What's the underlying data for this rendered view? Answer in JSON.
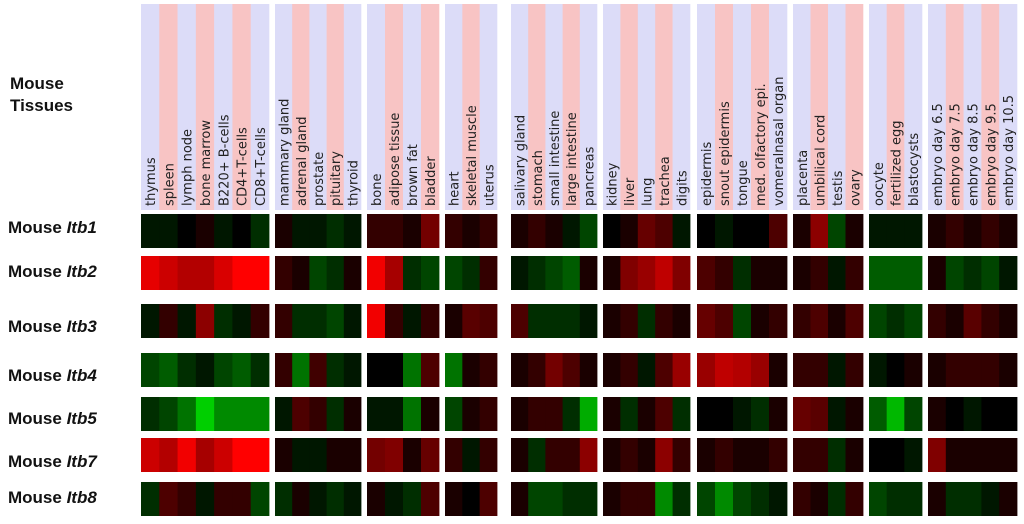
{
  "chart_data": {
    "type": "heatmap",
    "corner_label": [
      "Mouse",
      "Tissues"
    ],
    "row_prefix": "Mouse",
    "rows": [
      "Itb1",
      "Itb2",
      "Itb3",
      "Itb4",
      "Itb5",
      "Itb7",
      "Itb8"
    ],
    "colors": {
      "strong_red": "#ff0000",
      "strong_green": "#00e000",
      "zero": "#000000",
      "header_blue": "#dcdcf8",
      "header_pink": "#f8c4c4"
    },
    "groups": [
      {
        "tissues": [
          "thymus",
          "spleen",
          "lymph node",
          "bone marrow",
          "B220+ B-cells",
          "CD4+T-cells",
          "CD8+T-cells"
        ],
        "values": [
          [
            -0.1,
            -0.1,
            0,
            0.1,
            -0.1,
            0,
            -0.2
          ],
          [
            0.9,
            0.8,
            0.7,
            0.7,
            0.85,
            1,
            1
          ],
          [
            -0.1,
            0.2,
            -0.1,
            0.55,
            -0.2,
            -0.1,
            0.2
          ],
          [
            -0.3,
            -0.4,
            -0.2,
            -0.1,
            -0.3,
            -0.4,
            -0.2
          ],
          [
            -0.2,
            -0.3,
            -0.5,
            -0.9,
            -0.6,
            -0.6,
            -0.6
          ],
          [
            0.8,
            0.7,
            0.95,
            0.65,
            0.8,
            1,
            1
          ],
          [
            -0.2,
            0.3,
            0.2,
            -0.1,
            0.2,
            0.2,
            -0.3
          ]
        ]
      },
      {
        "tissues": [
          "mammary gland",
          "adrenal gland",
          "prostate",
          "pituitary",
          "thyroid"
        ],
        "values": [
          [
            0.1,
            -0.1,
            -0.1,
            -0.2,
            -0.1
          ],
          [
            0.2,
            0.1,
            -0.3,
            -0.2,
            0.1
          ],
          [
            0.2,
            -0.2,
            -0.2,
            -0.3,
            -0.1
          ],
          [
            0.2,
            -0.5,
            0.25,
            -0.2,
            -0.1
          ],
          [
            -0.1,
            0.3,
            0.2,
            -0.2,
            0.1
          ],
          [
            0.1,
            -0.1,
            -0.1,
            0.1,
            0.1
          ],
          [
            -0.2,
            0.1,
            -0.1,
            -0.2,
            -0.1
          ]
        ]
      },
      {
        "tissues": [
          "bone",
          "adipose tissue",
          "brown fat",
          "bladder"
        ],
        "values": [
          [
            0.2,
            0.2,
            0.1,
            0.45
          ],
          [
            0.95,
            0.65,
            -0.2,
            -0.3
          ],
          [
            0.95,
            0.2,
            -0.1,
            0.2
          ],
          [
            0,
            0,
            -0.5,
            0.3
          ],
          [
            -0.1,
            -0.1,
            -0.5,
            0.1
          ],
          [
            0.45,
            0.5,
            0.1,
            0.4
          ],
          [
            0.1,
            -0.1,
            -0.2,
            0.3
          ]
        ]
      },
      {
        "tissues": [
          "heart",
          "skeletal muscle",
          "uterus"
        ],
        "values": [
          [
            0.2,
            0.1,
            0.2
          ],
          [
            -0.3,
            -0.2,
            0.2
          ],
          [
            0.1,
            0.35,
            0.3
          ],
          [
            -0.5,
            0.1,
            0.2
          ],
          [
            -0.3,
            0.1,
            0.2
          ],
          [
            0.2,
            -0.1,
            0.2
          ],
          [
            0.1,
            0,
            0.3
          ]
        ]
      },
      {
        "tissues": [
          "salivary gland",
          "stomach",
          "small intestine",
          "large intestine",
          "pancreas"
        ],
        "values": [
          [
            0.1,
            0.2,
            0.1,
            -0.1,
            -0.3
          ],
          [
            -0.1,
            -0.2,
            -0.3,
            -0.4,
            0.1
          ],
          [
            0.3,
            -0.2,
            -0.2,
            -0.2,
            -0.1
          ],
          [
            0.1,
            0.2,
            0.45,
            0.3,
            0.1
          ],
          [
            0.1,
            0.2,
            0.2,
            -0.2,
            -0.75
          ],
          [
            0.1,
            -0.2,
            0.2,
            0.2,
            0.55
          ],
          [
            0.1,
            -0.3,
            -0.3,
            -0.2,
            -0.2
          ]
        ]
      },
      {
        "tissues": [
          "kidney",
          "liver",
          "lung",
          "trachea",
          "digits"
        ],
        "values": [
          [
            0,
            0.1,
            0.4,
            0.3,
            -0.1
          ],
          [
            0.1,
            0.5,
            0.6,
            0.75,
            0.5
          ],
          [
            0.1,
            0.2,
            -0.2,
            0.2,
            0.1
          ],
          [
            0.1,
            0.2,
            -0.1,
            0.3,
            0.6
          ],
          [
            0.1,
            -0.2,
            0.1,
            0.3,
            -0.2
          ],
          [
            0.1,
            0.2,
            0.1,
            0.55,
            0.2
          ],
          [
            0.1,
            0.2,
            0.2,
            -0.6,
            -0.2
          ]
        ]
      },
      {
        "tissues": [
          "epidermis",
          "snout epidermis",
          "tongue",
          "med. olfactory epi.",
          "vomeralnasal organ"
        ],
        "values": [
          [
            0,
            -0.1,
            0,
            0,
            0.3
          ],
          [
            0.3,
            0.2,
            -0.2,
            0.1,
            0.1
          ],
          [
            0.4,
            0.3,
            -0.3,
            0.1,
            0.2
          ],
          [
            0.6,
            0.75,
            0.7,
            0.6,
            0.1
          ],
          [
            0,
            0,
            -0.1,
            -0.2,
            0.1
          ],
          [
            0.1,
            0.2,
            0.1,
            0.1,
            0.2
          ],
          [
            -0.3,
            -0.6,
            -0.3,
            -0.2,
            -0.1
          ]
        ]
      },
      {
        "tissues": [
          "placenta",
          "umbilical cord",
          "testis",
          "ovary"
        ],
        "values": [
          [
            0.1,
            0.55,
            -0.3,
            0.1
          ],
          [
            0.1,
            0.2,
            -0.1,
            0.2
          ],
          [
            0.2,
            0.3,
            0.1,
            0.3
          ],
          [
            0.2,
            0.2,
            -0.1,
            0.2
          ],
          [
            0.4,
            0.35,
            -0.1,
            0.1
          ],
          [
            0.2,
            0.2,
            -0.2,
            0.1
          ],
          [
            0.2,
            0.1,
            -0.2,
            0.2
          ]
        ]
      },
      {
        "tissues": [
          "oocyte",
          "fertilized egg",
          "blastocysts"
        ],
        "values": [
          [
            -0.1,
            -0.1,
            -0.1
          ],
          [
            -0.4,
            -0.4,
            -0.4
          ],
          [
            -0.3,
            -0.2,
            -0.3
          ],
          [
            -0.1,
            0,
            0.1
          ],
          [
            -0.4,
            -0.8,
            -0.3
          ],
          [
            0,
            0,
            -0.1
          ],
          [
            -0.3,
            -0.2,
            -0.2
          ]
        ]
      },
      {
        "tissues": [
          "embryo day 6.5",
          "embryo day 7.5",
          "embryo day 8.5",
          "embryo day 9.5",
          "embryo day 10.5"
        ],
        "values": [
          [
            0.1,
            0.2,
            0.1,
            0.2,
            0.1
          ],
          [
            0.1,
            -0.3,
            -0.2,
            -0.3,
            -0.1
          ],
          [
            0.2,
            0.1,
            0.35,
            0.2,
            0.1
          ],
          [
            0.1,
            0.2,
            0.2,
            0.2,
            0.1
          ],
          [
            0.1,
            0,
            -0.1,
            0,
            0
          ],
          [
            0.5,
            0.1,
            0.1,
            0.1,
            0.1
          ],
          [
            0.1,
            -0.2,
            -0.2,
            -0.1,
            0.1
          ]
        ]
      }
    ]
  }
}
